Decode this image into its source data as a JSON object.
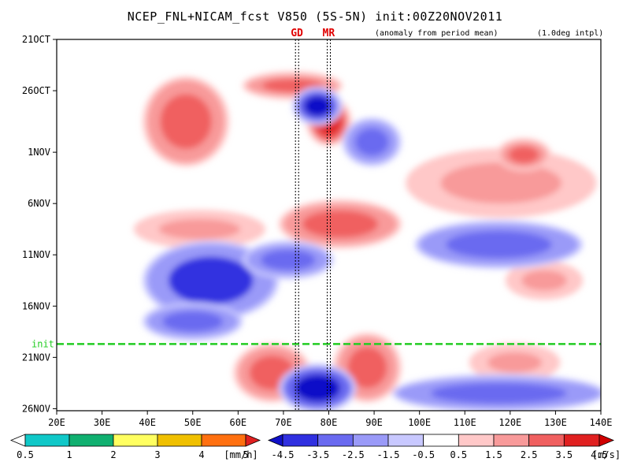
{
  "title": "NCEP_FNL+NICAM_fcst V850 (5S-5N) init:00Z20NOV2011",
  "subtitle_left": "(anomaly from period mean)",
  "subtitle_right": "(1.0deg intpl)",
  "markers": [
    {
      "label": "GD",
      "lon": 73,
      "color": "#e00000"
    },
    {
      "label": "MR",
      "lon": 80,
      "color": "#e00000"
    }
  ],
  "init_label": "init",
  "colors": {
    "init_line": "#22cc22",
    "frame": "#000000"
  },
  "chart_data": [
    {
      "type": "heatmap",
      "description_fields": "Hovmoller diagram of 850hPa meridional wind anomaly (shaded, m/s) and forecast precipitation (mm/h)",
      "x_axis": {
        "ticks": [
          "20E",
          "30E",
          "40E",
          "50E",
          "60E",
          "70E",
          "80E",
          "90E",
          "100E",
          "110E",
          "120E",
          "130E",
          "140E"
        ],
        "lon_range": [
          20,
          140
        ]
      },
      "y_axis": {
        "ticks": [
          "21OCT",
          "26OCT",
          "1NOV",
          "6NOV",
          "11NOV",
          "16NOV",
          "21NOV",
          "26NOV"
        ],
        "days_from_21OCT": [
          0,
          5,
          11,
          16,
          21,
          26,
          31,
          36
        ],
        "range_days": [
          0,
          36.2
        ]
      },
      "init_day": 29.7,
      "grid": false,
      "anomaly_features": [
        {
          "sign": "positive",
          "lon_start": 40,
          "lon_end": 57,
          "day_start": 4,
          "day_end": 12,
          "value": 3.0
        },
        {
          "sign": "positive",
          "lon_start": 62,
          "lon_end": 82,
          "day_start": 3.5,
          "day_end": 5.5,
          "value": 3.5
        },
        {
          "sign": "positive",
          "lon_start": 76,
          "lon_end": 84,
          "day_start": 6,
          "day_end": 10,
          "value": 4.5
        },
        {
          "sign": "positive",
          "lon_start": 38,
          "lon_end": 65,
          "day_start": 17,
          "day_end": 20,
          "value": 2.5
        },
        {
          "sign": "positive",
          "lon_start": 70,
          "lon_end": 95,
          "day_start": 16,
          "day_end": 20,
          "value": 3.5
        },
        {
          "sign": "positive",
          "lon_start": 98,
          "lon_end": 138,
          "day_start": 11,
          "day_end": 17,
          "value": 2.5
        },
        {
          "sign": "positive",
          "lon_start": 118,
          "lon_end": 128,
          "day_start": 10,
          "day_end": 12.5,
          "value": 3.5
        },
        {
          "sign": "positive",
          "lon_start": 120,
          "lon_end": 135,
          "day_start": 22,
          "day_end": 25,
          "value": 2.5
        },
        {
          "sign": "positive",
          "lon_start": 60,
          "lon_end": 75,
          "day_start": 30,
          "day_end": 35,
          "value": 3.0
        },
        {
          "sign": "positive",
          "lon_start": 82,
          "lon_end": 95,
          "day_start": 29,
          "day_end": 35,
          "value": 3.5
        },
        {
          "sign": "positive",
          "lon_start": 112,
          "lon_end": 130,
          "day_start": 30,
          "day_end": 33,
          "value": 2.5
        },
        {
          "sign": "negative",
          "lon_start": 73,
          "lon_end": 82,
          "day_start": 5,
          "day_end": 8,
          "value": -4.5
        },
        {
          "sign": "negative",
          "lon_start": 84,
          "lon_end": 95,
          "day_start": 8,
          "day_end": 12,
          "value": -3.0
        },
        {
          "sign": "negative",
          "lon_start": 40,
          "lon_end": 68,
          "day_start": 20,
          "day_end": 27,
          "value": -3.5
        },
        {
          "sign": "negative",
          "lon_start": 62,
          "lon_end": 80,
          "day_start": 20,
          "day_end": 23,
          "value": -2.5
        },
        {
          "sign": "negative",
          "lon_start": 40,
          "lon_end": 60,
          "day_start": 26,
          "day_end": 29,
          "value": -2.5
        },
        {
          "sign": "negative",
          "lon_start": 100,
          "lon_end": 135,
          "day_start": 18,
          "day_end": 22,
          "value": -2.5
        },
        {
          "sign": "negative",
          "lon_start": 70,
          "lon_end": 85,
          "day_start": 32,
          "day_end": 36,
          "value": -4.5
        },
        {
          "sign": "negative",
          "lon_start": 95,
          "lon_end": 140,
          "day_start": 33,
          "day_end": 36,
          "value": -2.5
        }
      ],
      "colorbar": {
        "levels": [
          "-4.5",
          "-3.5",
          "-2.5",
          "-1.5",
          "-0.5",
          "0.5",
          "1.5",
          "2.5",
          "3.5",
          "4.5"
        ],
        "unit": "[m/s]",
        "colors": [
          "#1010c8",
          "#3030e0",
          "#6a6af0",
          "#9a9af8",
          "#c8c8ff",
          "#ffffff",
          "#ffc8c8",
          "#f89a9a",
          "#f06060",
          "#e02020",
          "#d00000"
        ]
      }
    },
    {
      "type": "heatmap",
      "description_fields": "precipitation colorbar",
      "colorbar": {
        "levels": [
          "0.5",
          "1",
          "2",
          "3",
          "4",
          "5"
        ],
        "unit": "[mm/h]",
        "colors": [
          "#ffffff",
          "#10c8c8",
          "#10b070",
          "#ffff60",
          "#f0c000",
          "#ff7010",
          "#e02020"
        ]
      }
    }
  ]
}
